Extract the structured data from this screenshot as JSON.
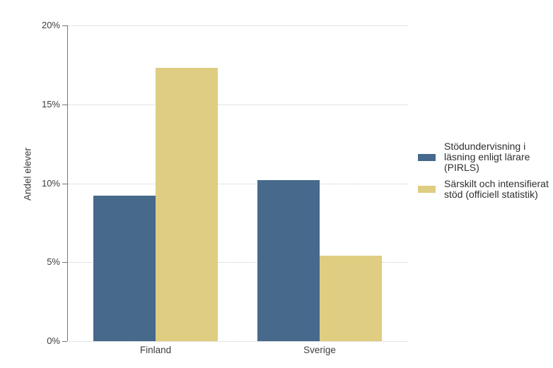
{
  "chart_data": {
    "type": "bar",
    "title": "",
    "xlabel": "",
    "ylabel": "Andel elever",
    "categories": [
      "Finland",
      "Sverige"
    ],
    "series": [
      {
        "name": "Stödundervisning i läsning enligt lärare (PIRLS)",
        "color": "#46698C",
        "values": [
          9.2,
          10.2
        ]
      },
      {
        "name": "Särskilt och intensifierat stöd (officiell statistik)",
        "color": "#DFCD81",
        "values": [
          17.3,
          5.4
        ]
      }
    ],
    "ylim": [
      0,
      20
    ],
    "yticks": [
      {
        "value": 0,
        "label": "0%"
      },
      {
        "value": 5,
        "label": "5%"
      },
      {
        "value": 10,
        "label": "10%"
      },
      {
        "value": 15,
        "label": "15%"
      },
      {
        "value": 20,
        "label": "20%"
      }
    ],
    "grid": "horizontal-dotted",
    "legend_position": "right-center"
  }
}
